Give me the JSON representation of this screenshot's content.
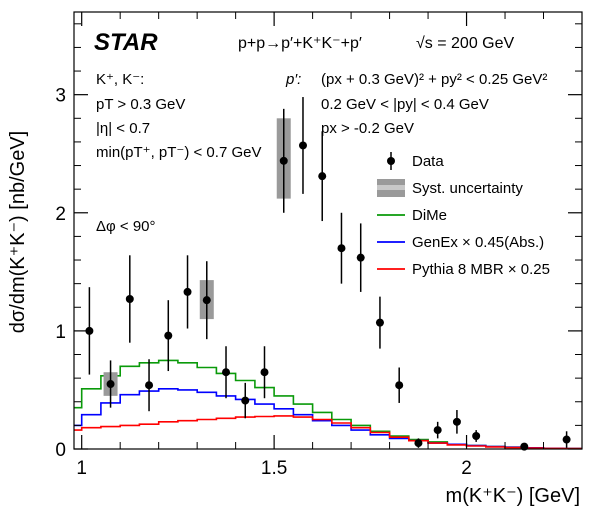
{
  "chart_data": {
    "type": "scatter",
    "experiment": "STAR",
    "reaction": "p+p→p′+K⁺K⁻+p′",
    "energy": "√s = 200 GeV",
    "ylabel": "dσ/dm(K⁺K⁻) [nb/GeV]",
    "xlabel": "m(K⁺K⁻) [GeV]",
    "xlim": [
      0.98,
      2.3
    ],
    "ylim": [
      0,
      3.7
    ],
    "xticks": [
      1,
      1.5,
      2
    ],
    "xtick_labels": [
      "1",
      "1.5",
      "2"
    ],
    "yticks": [
      0,
      1,
      2,
      3
    ],
    "ytick_labels": [
      "0",
      "1",
      "2",
      "3"
    ],
    "cuts_left": [
      "K⁺, K⁻:",
      "pT > 0.3 GeV",
      "|η| < 0.7",
      "min(pT⁺, pT⁻) < 0.7 GeV"
    ],
    "cut_dphi": "Δφ < 90°",
    "cuts_right_label": "p′:",
    "cuts_right": [
      "(px + 0.3 GeV)² + py² < 0.25 GeV²",
      "0.2 GeV < |py| < 0.4 GeV",
      "px > -0.2 GeV"
    ],
    "legend_position": "right",
    "colors": {
      "data": "#000000",
      "syst": "#9a9a9a",
      "dime": "#0a9a0a",
      "genex": "#0000ff",
      "pythia": "#ff0000"
    },
    "series": [
      {
        "name": "Data",
        "x": [
          1.02,
          1.075,
          1.125,
          1.175,
          1.225,
          1.275,
          1.325,
          1.375,
          1.425,
          1.475,
          1.525,
          1.575,
          1.625,
          1.675,
          1.725,
          1.775,
          1.825,
          1.875,
          1.925,
          1.975,
          2.025,
          2.15,
          2.26
        ],
        "y": [
          1.0,
          0.55,
          1.27,
          0.54,
          0.96,
          1.33,
          1.26,
          0.65,
          0.41,
          0.65,
          2.44,
          2.57,
          2.31,
          1.7,
          1.62,
          1.07,
          0.54,
          0.05,
          0.16,
          0.23,
          0.11,
          0.02,
          0.08
        ],
        "err": [
          0.37,
          0.2,
          0.37,
          0.22,
          0.3,
          0.31,
          0.33,
          0.22,
          0.15,
          0.22,
          0.44,
          0.41,
          0.38,
          0.3,
          0.29,
          0.22,
          0.15,
          0.04,
          0.07,
          0.1,
          0.05,
          0.02,
          0.07
        ]
      },
      {
        "name": "Syst. uncertainty",
        "boxes": [
          {
            "x": 1.075,
            "low": 0.45,
            "high": 0.65
          },
          {
            "x": 1.325,
            "low": 1.1,
            "high": 1.43
          },
          {
            "x": 1.525,
            "low": 2.12,
            "high": 2.8
          }
        ]
      },
      {
        "name": "DiMe",
        "edges": [
          0.98,
          1.0,
          1.05,
          1.1,
          1.15,
          1.2,
          1.25,
          1.3,
          1.35,
          1.4,
          1.45,
          1.5,
          1.55,
          1.6,
          1.65,
          1.7,
          1.75,
          1.8,
          1.85,
          1.9,
          1.95,
          2.0,
          2.05,
          2.1,
          2.15,
          2.2,
          2.25,
          2.3
        ],
        "values": [
          0.35,
          0.51,
          0.62,
          0.7,
          0.73,
          0.75,
          0.73,
          0.69,
          0.64,
          0.58,
          0.52,
          0.45,
          0.38,
          0.31,
          0.25,
          0.2,
          0.15,
          0.11,
          0.08,
          0.06,
          0.04,
          0.03,
          0.02,
          0.015,
          0.01,
          0.005,
          0.003
        ]
      },
      {
        "name": "GenEx × 0.45(Abs.)",
        "edges": [
          0.98,
          1.0,
          1.05,
          1.1,
          1.15,
          1.2,
          1.25,
          1.3,
          1.35,
          1.4,
          1.45,
          1.5,
          1.55,
          1.6,
          1.65,
          1.7,
          1.75,
          1.8,
          1.85,
          1.9,
          1.95,
          2.0,
          2.05,
          2.1,
          2.15,
          2.2,
          2.25,
          2.3
        ],
        "values": [
          0.2,
          0.29,
          0.39,
          0.46,
          0.49,
          0.51,
          0.5,
          0.48,
          0.45,
          0.42,
          0.38,
          0.34,
          0.29,
          0.24,
          0.2,
          0.16,
          0.12,
          0.09,
          0.07,
          0.05,
          0.04,
          0.03,
          0.02,
          0.015,
          0.01,
          0.006,
          0.004
        ]
      },
      {
        "name": "Pythia 8 MBR × 0.25",
        "edges": [
          0.98,
          1.0,
          1.05,
          1.1,
          1.15,
          1.2,
          1.25,
          1.3,
          1.35,
          1.4,
          1.45,
          1.5,
          1.55,
          1.6,
          1.65,
          1.7,
          1.75,
          1.8,
          1.85,
          1.9,
          1.95,
          2.0,
          2.05,
          2.1,
          2.15,
          2.2,
          2.25,
          2.3
        ],
        "values": [
          0.16,
          0.18,
          0.19,
          0.2,
          0.21,
          0.23,
          0.24,
          0.25,
          0.26,
          0.27,
          0.275,
          0.28,
          0.27,
          0.25,
          0.22,
          0.18,
          0.14,
          0.1,
          0.07,
          0.05,
          0.035,
          0.025,
          0.018,
          0.012,
          0.008,
          0.005,
          0.003
        ]
      }
    ]
  }
}
